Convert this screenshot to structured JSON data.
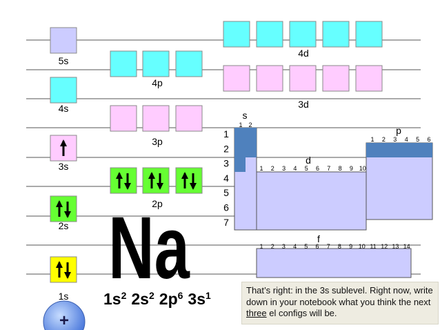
{
  "sublevels": [
    {
      "label": "5s"
    },
    {
      "label": "4s"
    },
    {
      "label": "3s"
    },
    {
      "label": "2s"
    },
    {
      "label": "1s"
    },
    {
      "label": "4p"
    },
    {
      "label": "3p"
    },
    {
      "label": "2p"
    },
    {
      "label": "4d"
    },
    {
      "label": "3d"
    }
  ],
  "nucleus": "+",
  "symbol": "Na",
  "config": [
    {
      "term": "1s",
      "exp": "2"
    },
    {
      "term": "2s",
      "exp": "2"
    },
    {
      "term": "2p",
      "exp": "6"
    },
    {
      "term": "3s",
      "exp": "1"
    }
  ],
  "table": {
    "s_label": "s",
    "s_columns": [
      1,
      2
    ],
    "rows": [
      1,
      2,
      3,
      4,
      5,
      6,
      7
    ],
    "p_label": "p",
    "p_columns": [
      1,
      2,
      3,
      4,
      5,
      6
    ],
    "d_label": "d",
    "d_columns": [
      1,
      2,
      3,
      4,
      5,
      6,
      7,
      8,
      9,
      10
    ],
    "f_label": "f",
    "f_columns": [
      1,
      2,
      3,
      4,
      5,
      6,
      7,
      8,
      9,
      10,
      11,
      12,
      13,
      14
    ]
  },
  "message": {
    "before": "That’s right: in the 3s sublevel.  Right now, write down in your notebook what you think the next ",
    "emph": "three",
    "after": " el configs will be."
  }
}
